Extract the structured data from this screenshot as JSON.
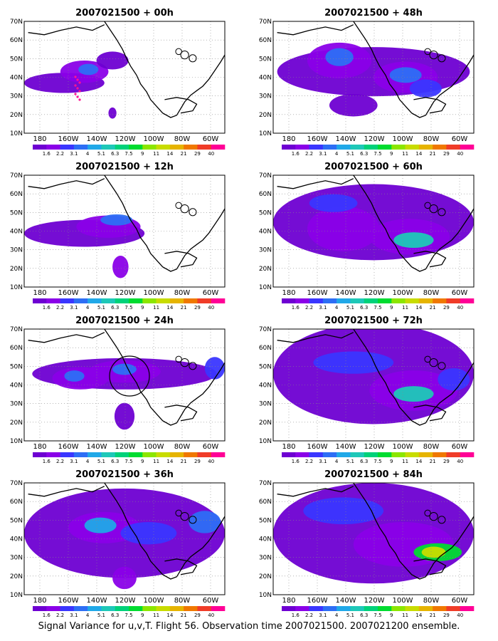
{
  "figure": {
    "footer": "Signal Variance for u,v,T. Flight 56. Observation time 2007021500. 2007021200 ensemble."
  },
  "axes": {
    "lat_labels": [
      "70N",
      "60N",
      "50N",
      "40N",
      "30N",
      "20N",
      "10N"
    ],
    "lon_labels": [
      "180",
      "160W",
      "140W",
      "120W",
      "100W",
      "80W",
      "60W"
    ]
  },
  "colorbar": {
    "labels": [
      "1.6",
      "2.2",
      "3.1",
      "4",
      "5.1",
      "6.3",
      "7.5",
      "9",
      "11",
      "14",
      "21",
      "29",
      "40"
    ],
    "colors": [
      "#6e00d2",
      "#8a00e8",
      "#3a36ff",
      "#2d6ef5",
      "#20a8e8",
      "#1ec8b8",
      "#00d27a",
      "#00dc30",
      "#8ce600",
      "#c8dc00",
      "#e6b400",
      "#f07800",
      "#f03c28",
      "#ff0096"
    ]
  },
  "panels": [
    {
      "title": "2007021500 + 00h"
    },
    {
      "title": "2007021500 + 48h"
    },
    {
      "title": "2007021500 + 12h"
    },
    {
      "title": "2007021500 + 60h"
    },
    {
      "title": "2007021500 + 24h"
    },
    {
      "title": "2007021500 + 72h"
    },
    {
      "title": "2007021500 + 36h"
    },
    {
      "title": "2007021500 + 84h"
    }
  ]
}
